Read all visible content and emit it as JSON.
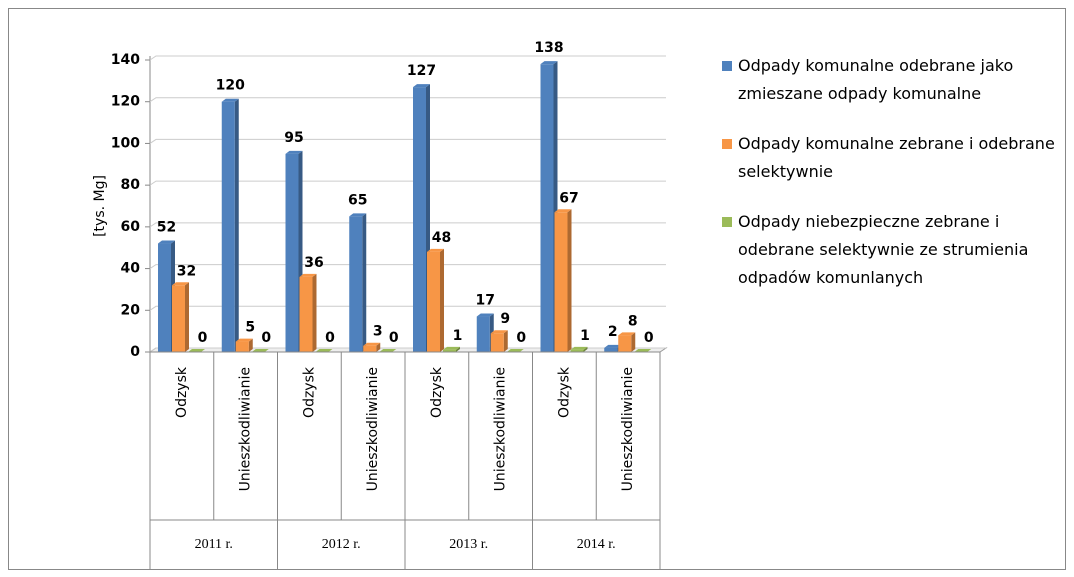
{
  "chart_data": {
    "type": "bar",
    "ylabel": "[tys. Mg]",
    "categories": [
      "Odzysk",
      "Unieszkodliwianie",
      "Odzysk",
      "Unieszkodliwianie",
      "Odzysk",
      "Unieszkodliwianie",
      "Odzysk",
      "Unieszkodliwianie"
    ],
    "groups": [
      "2011 r.",
      "2012 r.",
      "2013 r.",
      "2014 r."
    ],
    "series": [
      {
        "name": "Odpady komunalne odebrane jako zmieszane odpady komunalne",
        "color": "#4f81bd",
        "values": [
          52,
          120,
          95,
          65,
          127,
          17,
          138,
          2
        ]
      },
      {
        "name": "Odpady komunalne zebrane i odebrane selektywnie",
        "color": "#f79646",
        "values": [
          32,
          5,
          36,
          3,
          48,
          9,
          67,
          8
        ]
      },
      {
        "name": "Odpady niebezpieczne zebrane i odebrane selektywnie ze strumienia odpadów komunlanych",
        "color": "#9bbb59",
        "values": [
          0,
          0,
          0,
          0,
          1,
          0,
          1,
          0
        ]
      }
    ],
    "ylim": [
      0,
      140
    ],
    "yticks": [
      0,
      20,
      40,
      60,
      80,
      100,
      120,
      140
    ],
    "grid": true
  }
}
